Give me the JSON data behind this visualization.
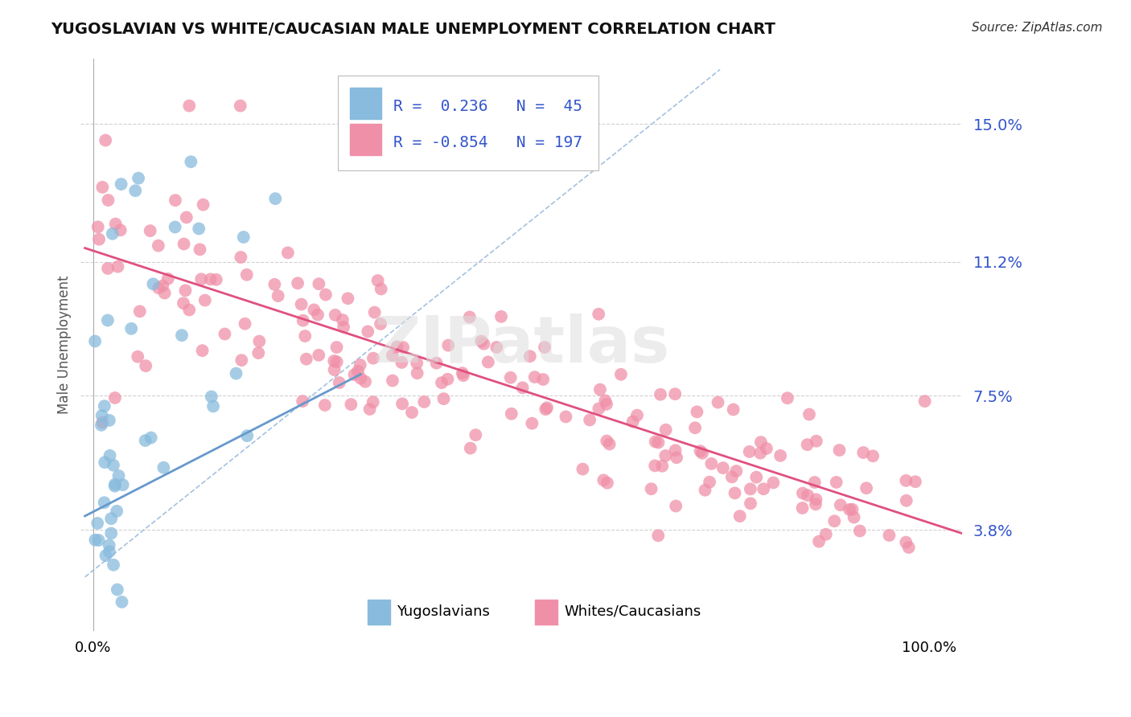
{
  "title": "YUGOSLAVIAN VS WHITE/CAUCASIAN MALE UNEMPLOYMENT CORRELATION CHART",
  "source": "Source: ZipAtlas.com",
  "ylabel": "Male Unemployment",
  "ytick_values": [
    0.038,
    0.075,
    0.112,
    0.15
  ],
  "ytick_labels": [
    "3.8%",
    "7.5%",
    "11.2%",
    "15.0%"
  ],
  "ylim": [
    0.01,
    0.168
  ],
  "xlim": [
    -0.015,
    1.04
  ],
  "r_blue": 0.236,
  "n_blue": 45,
  "r_pink": -0.854,
  "n_pink": 197,
  "blue_color": "#6699CC",
  "blue_scatter_color": "#88BBDD",
  "pink_color": "#E05080",
  "pink_scatter_color": "#F090A8",
  "watermark_text": "ZIPatlas",
  "legend_label_blue": "Yugoslavians",
  "legend_label_pink": "Whites/Caucasians",
  "background_color": "#ffffff",
  "grid_color": "#cccccc",
  "r_text_color": "#3355CC",
  "ref_line_color": "#99BBDD",
  "title_color": "#111111"
}
